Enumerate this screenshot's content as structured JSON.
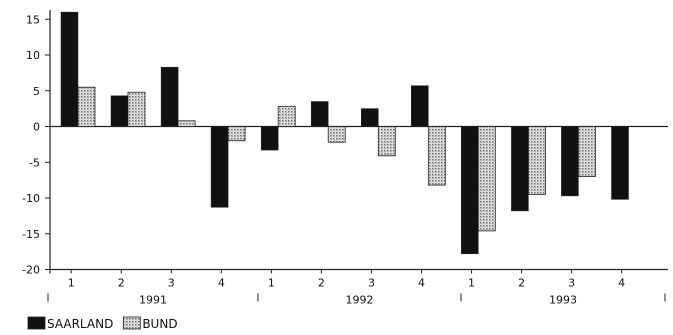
{
  "chart_data": {
    "type": "bar",
    "title": "",
    "xlabel": "",
    "ylabel": "",
    "ylim": [
      -20,
      17
    ],
    "yticks": [
      15,
      10,
      5,
      0,
      -5,
      -10,
      -15,
      -20
    ],
    "grid": false,
    "legend_position": "bottom-left",
    "categories": [
      "1",
      "2",
      "3",
      "4",
      "1",
      "2",
      "3",
      "4",
      "1",
      "2",
      "3",
      "4"
    ],
    "groups": [
      {
        "label": "1991",
        "categories": [
          "1",
          "2",
          "3",
          "4"
        ]
      },
      {
        "label": "1992",
        "categories": [
          "1",
          "2",
          "3",
          "4"
        ]
      },
      {
        "label": "1993",
        "categories": [
          "1",
          "2",
          "3",
          "4"
        ]
      }
    ],
    "series": [
      {
        "name": "SAARLAND",
        "color": "#111111",
        "values": [
          16.0,
          4.3,
          8.3,
          -11.3,
          -3.3,
          3.5,
          2.5,
          5.7,
          -17.8,
          -11.8,
          -9.7,
          -10.2
        ]
      },
      {
        "name": "BUND",
        "color": "#cfcfcf",
        "pattern": "dotted",
        "values": [
          5.5,
          4.8,
          0.8,
          -2.0,
          2.8,
          -2.2,
          -4.1,
          -8.2,
          -14.6,
          -9.5,
          -7.0,
          null
        ]
      }
    ]
  }
}
